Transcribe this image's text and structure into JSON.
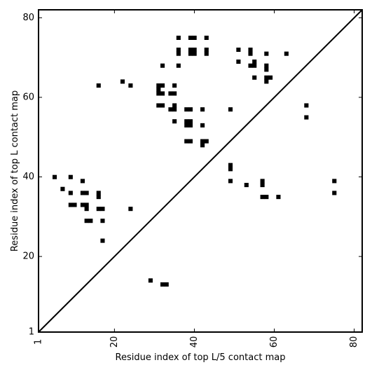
{
  "chart_data": {
    "type": "scatter",
    "title": "",
    "xlabel": "Residue index of top L/5 contact map",
    "ylabel": "Residue index of top L contact map",
    "xlim": [
      1,
      82
    ],
    "ylim": [
      1,
      82
    ],
    "xticks": [
      1,
      20,
      40,
      60,
      80
    ],
    "yticks": [
      1,
      20,
      40,
      60,
      80
    ],
    "grid": false,
    "diagonal_line": true,
    "marker": "square",
    "color": "#000000",
    "points": [
      {
        "x": 36,
        "y": 75
      },
      {
        "x": 39,
        "y": 75
      },
      {
        "x": 40,
        "y": 75
      },
      {
        "x": 43,
        "y": 75
      },
      {
        "x": 36,
        "y": 72
      },
      {
        "x": 39,
        "y": 72
      },
      {
        "x": 40,
        "y": 72
      },
      {
        "x": 43,
        "y": 72
      },
      {
        "x": 36,
        "y": 71
      },
      {
        "x": 39,
        "y": 71
      },
      {
        "x": 40,
        "y": 71
      },
      {
        "x": 43,
        "y": 71
      },
      {
        "x": 51,
        "y": 72
      },
      {
        "x": 54,
        "y": 72
      },
      {
        "x": 54,
        "y": 71
      },
      {
        "x": 58,
        "y": 71
      },
      {
        "x": 63,
        "y": 71
      },
      {
        "x": 51,
        "y": 69
      },
      {
        "x": 55,
        "y": 69
      },
      {
        "x": 54,
        "y": 68
      },
      {
        "x": 55,
        "y": 68
      },
      {
        "x": 58,
        "y": 68
      },
      {
        "x": 58,
        "y": 67
      },
      {
        "x": 55,
        "y": 65
      },
      {
        "x": 58,
        "y": 65
      },
      {
        "x": 59,
        "y": 65
      },
      {
        "x": 58,
        "y": 64
      },
      {
        "x": 32,
        "y": 68
      },
      {
        "x": 36,
        "y": 68
      },
      {
        "x": 22,
        "y": 64
      },
      {
        "x": 16,
        "y": 63
      },
      {
        "x": 24,
        "y": 63
      },
      {
        "x": 31,
        "y": 63
      },
      {
        "x": 32,
        "y": 63
      },
      {
        "x": 35,
        "y": 63
      },
      {
        "x": 31,
        "y": 62
      },
      {
        "x": 31,
        "y": 61
      },
      {
        "x": 32,
        "y": 61
      },
      {
        "x": 34,
        "y": 61
      },
      {
        "x": 35,
        "y": 61
      },
      {
        "x": 31,
        "y": 58
      },
      {
        "x": 32,
        "y": 58
      },
      {
        "x": 35,
        "y": 58
      },
      {
        "x": 34,
        "y": 57
      },
      {
        "x": 35,
        "y": 57
      },
      {
        "x": 38,
        "y": 57
      },
      {
        "x": 39,
        "y": 57
      },
      {
        "x": 42,
        "y": 57
      },
      {
        "x": 49,
        "y": 57
      },
      {
        "x": 35,
        "y": 54
      },
      {
        "x": 38,
        "y": 54
      },
      {
        "x": 39,
        "y": 54
      },
      {
        "x": 38,
        "y": 53
      },
      {
        "x": 39,
        "y": 53
      },
      {
        "x": 42,
        "y": 53
      },
      {
        "x": 38,
        "y": 49
      },
      {
        "x": 39,
        "y": 49
      },
      {
        "x": 42,
        "y": 49
      },
      {
        "x": 43,
        "y": 49
      },
      {
        "x": 42,
        "y": 48
      },
      {
        "x": 68,
        "y": 58
      },
      {
        "x": 68,
        "y": 55
      },
      {
        "x": 49,
        "y": 43
      },
      {
        "x": 49,
        "y": 42
      },
      {
        "x": 49,
        "y": 39
      },
      {
        "x": 53,
        "y": 38
      },
      {
        "x": 57,
        "y": 39
      },
      {
        "x": 57,
        "y": 38
      },
      {
        "x": 57,
        "y": 35
      },
      {
        "x": 58,
        "y": 35
      },
      {
        "x": 61,
        "y": 35
      },
      {
        "x": 75,
        "y": 39
      },
      {
        "x": 75,
        "y": 36
      },
      {
        "x": 5,
        "y": 40
      },
      {
        "x": 9,
        "y": 40
      },
      {
        "x": 12,
        "y": 39
      },
      {
        "x": 7,
        "y": 37
      },
      {
        "x": 9,
        "y": 36
      },
      {
        "x": 12,
        "y": 36
      },
      {
        "x": 13,
        "y": 36
      },
      {
        "x": 16,
        "y": 36
      },
      {
        "x": 16,
        "y": 35
      },
      {
        "x": 9,
        "y": 33
      },
      {
        "x": 10,
        "y": 33
      },
      {
        "x": 12,
        "y": 33
      },
      {
        "x": 13,
        "y": 33
      },
      {
        "x": 13,
        "y": 32
      },
      {
        "x": 16,
        "y": 32
      },
      {
        "x": 17,
        "y": 32
      },
      {
        "x": 24,
        "y": 32
      },
      {
        "x": 13,
        "y": 29
      },
      {
        "x": 14,
        "y": 29
      },
      {
        "x": 17,
        "y": 29
      },
      {
        "x": 17,
        "y": 24
      },
      {
        "x": 29,
        "y": 14
      },
      {
        "x": 32,
        "y": 13
      },
      {
        "x": 33,
        "y": 13
      }
    ]
  }
}
